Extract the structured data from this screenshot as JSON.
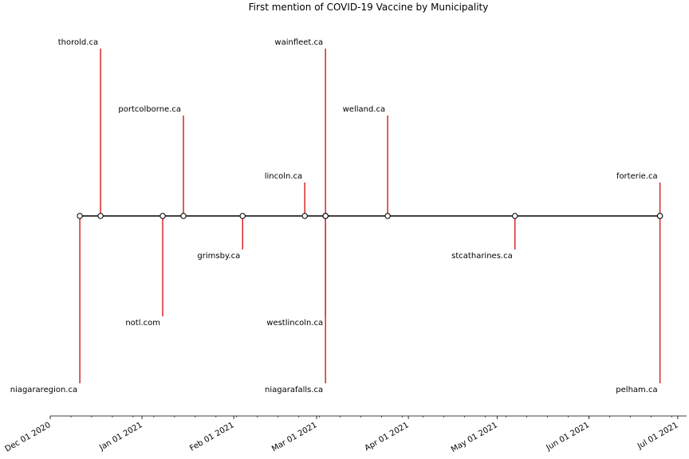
{
  "chart_data": {
    "type": "timeline",
    "title": "First mention of COVID-19 Vaccine by Municipality",
    "xlabel": "",
    "ylabel": "",
    "x_range": [
      "2020-12-01",
      "2021-07-04"
    ],
    "axis_ticks": [
      {
        "date": "2020-12-01",
        "label": "Dec 01 2020"
      },
      {
        "date": "2021-01-01",
        "label": "Jan 01 2021"
      },
      {
        "date": "2021-02-01",
        "label": "Feb 01 2021"
      },
      {
        "date": "2021-03-01",
        "label": "Mar 01 2021"
      },
      {
        "date": "2021-04-01",
        "label": "Apr 01 2021"
      },
      {
        "date": "2021-05-01",
        "label": "May 01 2021"
      },
      {
        "date": "2021-06-01",
        "label": "Jun 01 2021"
      },
      {
        "date": "2021-07-01",
        "label": "Jul 01 2021"
      }
    ],
    "minor_ticks": [
      "2020-12-08",
      "2020-12-15",
      "2020-12-22",
      "2020-12-29",
      "2021-01-05",
      "2021-01-12",
      "2021-01-19",
      "2021-01-26",
      "2021-02-02",
      "2021-02-09",
      "2021-02-16",
      "2021-02-23",
      "2021-03-02",
      "2021-03-09",
      "2021-03-16",
      "2021-03-23",
      "2021-03-30",
      "2021-04-06",
      "2021-04-13",
      "2021-04-20",
      "2021-04-27",
      "2021-05-04",
      "2021-05-11",
      "2021-05-18",
      "2021-05-25",
      "2021-06-01",
      "2021-06-08",
      "2021-06-15",
      "2021-06-22",
      "2021-06-29"
    ],
    "events": [
      {
        "label": "niagararegion.ca",
        "date": "2020-12-11",
        "level": -5
      },
      {
        "label": "thorold.ca",
        "date": "2020-12-18",
        "level": 5
      },
      {
        "label": "notl.com",
        "date": "2021-01-08",
        "level": -3
      },
      {
        "label": "portcolborne.ca",
        "date": "2021-01-15",
        "level": 3
      },
      {
        "label": "grimsby.ca",
        "date": "2021-02-04",
        "level": -1
      },
      {
        "label": "lincoln.ca",
        "date": "2021-02-25",
        "level": 1
      },
      {
        "label": "niagarafalls.ca",
        "date": "2021-03-04",
        "level": -5
      },
      {
        "label": "wainfleet.ca",
        "date": "2021-03-04",
        "level": 5
      },
      {
        "label": "westlincoln.ca",
        "date": "2021-03-04",
        "level": -3
      },
      {
        "label": "welland.ca",
        "date": "2021-03-25",
        "level": 3
      },
      {
        "label": "stcatharines.ca",
        "date": "2021-05-07",
        "level": -1
      },
      {
        "label": "forterie.ca",
        "date": "2021-06-25",
        "level": 1
      },
      {
        "label": "pelham.ca",
        "date": "2021-06-25",
        "level": -5
      }
    ],
    "stem_color": "#d62728",
    "line_color": "#000000",
    "marker_fill": "#ffffff",
    "marker_edge": "#000000"
  }
}
